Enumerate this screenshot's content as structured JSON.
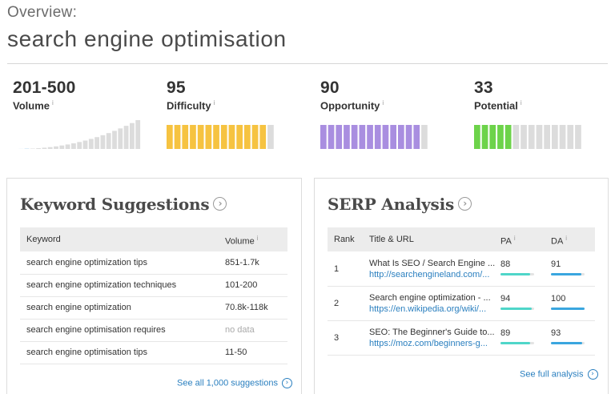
{
  "header": {
    "overview_label": "Overview:",
    "keyword": "search engine optimisation"
  },
  "metrics": {
    "volume": {
      "value": "201-500",
      "label": "Volume",
      "info": "i"
    },
    "difficulty": {
      "value": "95",
      "label": "Difficulty",
      "info": "i",
      "level": 0.95,
      "color": "#f6c341"
    },
    "opportunity": {
      "value": "90",
      "label": "Opportunity",
      "info": "i",
      "level": 0.9,
      "color": "#a98ee0"
    },
    "potential": {
      "value": "33",
      "label": "Potential",
      "info": "i",
      "level": 0.33,
      "color": "#6dd34a"
    }
  },
  "keyword_suggestions": {
    "title": "Keyword Suggestions",
    "headers": {
      "keyword": "Keyword",
      "volume": "Volume",
      "info": "i"
    },
    "rows": [
      {
        "keyword": "search engine optimization tips",
        "volume": "851-1.7k"
      },
      {
        "keyword": "search engine optimization techniques",
        "volume": "101-200"
      },
      {
        "keyword": "search engine optimization",
        "volume": "70.8k-118k"
      },
      {
        "keyword": "search engine optimisation requires",
        "volume": "no data"
      },
      {
        "keyword": "search engine optimisation tips",
        "volume": "11-50"
      }
    ],
    "footer": "See all 1,000 suggestions"
  },
  "serp_analysis": {
    "title": "SERP Analysis",
    "headers": {
      "rank": "Rank",
      "title_url": "Title & URL",
      "pa": "PA",
      "da": "DA",
      "info": "i"
    },
    "rows": [
      {
        "rank": "1",
        "title": "What Is SEO / Search Engine ...",
        "url": "http://searchengineland.com/...",
        "pa": "88",
        "da": "91"
      },
      {
        "rank": "2",
        "title": "Search engine optimization - ...",
        "url": "https://en.wikipedia.org/wiki/...",
        "pa": "94",
        "da": "100"
      },
      {
        "rank": "3",
        "title": "SEO: The Beginner's Guide to...",
        "url": "https://moz.com/beginners-g...",
        "pa": "89",
        "da": "93"
      }
    ],
    "footer": "See full analysis"
  },
  "colors": {
    "accent_link": "#2a7fbf",
    "pa_bar": "#4fd6c9",
    "da_bar": "#3aa6df",
    "volume_bar": "#dcdcdc",
    "volume_bar_low": "#5aa6e0"
  }
}
